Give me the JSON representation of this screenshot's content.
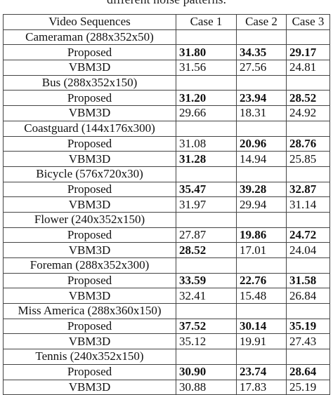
{
  "caption": "different noise patterns.",
  "table": {
    "headers": [
      "Video Sequences",
      "Case 1",
      "Case 2",
      "Case 3"
    ],
    "groups": [
      {
        "sequence": "Cameraman (288x352x50)",
        "rows": [
          {
            "method": "Proposed",
            "values": [
              "31.80",
              "34.35",
              "29.17"
            ],
            "bold": [
              true,
              true,
              true
            ]
          },
          {
            "method": "VBM3D",
            "values": [
              "31.56",
              "27.56",
              "24.81"
            ],
            "bold": [
              false,
              false,
              false
            ]
          }
        ]
      },
      {
        "sequence": "Bus (288x352x150)",
        "rows": [
          {
            "method": "Proposed",
            "values": [
              "31.20",
              "23.94",
              "28.52"
            ],
            "bold": [
              true,
              true,
              true
            ]
          },
          {
            "method": "VBM3D",
            "values": [
              "29.66",
              "18.31",
              "24.92"
            ],
            "bold": [
              false,
              false,
              false
            ]
          }
        ]
      },
      {
        "sequence": "Coastguard (144x176x300)",
        "rows": [
          {
            "method": "Proposed",
            "values": [
              "31.08",
              "20.96",
              "28.76"
            ],
            "bold": [
              false,
              true,
              true
            ]
          },
          {
            "method": "VBM3D",
            "values": [
              "31.28",
              "14.94",
              "25.85"
            ],
            "bold": [
              true,
              false,
              false
            ]
          }
        ]
      },
      {
        "sequence": "Bicycle (576x720x30)",
        "rows": [
          {
            "method": "Proposed",
            "values": [
              "35.47",
              "39.28",
              "32.87"
            ],
            "bold": [
              true,
              true,
              true
            ]
          },
          {
            "method": "VBM3D",
            "values": [
              "31.97",
              "29.94",
              "31.14"
            ],
            "bold": [
              false,
              false,
              false
            ]
          }
        ]
      },
      {
        "sequence": "Flower (240x352x150)",
        "rows": [
          {
            "method": "Proposed",
            "values": [
              "27.87",
              "19.86",
              "24.72"
            ],
            "bold": [
              false,
              true,
              true
            ]
          },
          {
            "method": "VBM3D",
            "values": [
              "28.52",
              "17.01",
              "24.04"
            ],
            "bold": [
              true,
              false,
              false
            ]
          }
        ]
      },
      {
        "sequence": "Foreman (288x352x300)",
        "rows": [
          {
            "method": "Proposed",
            "values": [
              "33.59",
              "22.76",
              "31.58"
            ],
            "bold": [
              true,
              true,
              true
            ]
          },
          {
            "method": "VBM3D",
            "values": [
              "32.41",
              "15.48",
              "26.84"
            ],
            "bold": [
              false,
              false,
              false
            ]
          }
        ]
      },
      {
        "sequence": "Miss America (288x360x150)",
        "rows": [
          {
            "method": "Proposed",
            "values": [
              "37.52",
              "30.14",
              "35.19"
            ],
            "bold": [
              true,
              true,
              true
            ]
          },
          {
            "method": "VBM3D",
            "values": [
              "35.12",
              "19.91",
              "27.43"
            ],
            "bold": [
              false,
              false,
              false
            ]
          }
        ]
      },
      {
        "sequence": "Tennis (240x352x150)",
        "rows": [
          {
            "method": "Proposed",
            "values": [
              "30.90",
              "23.74",
              "28.64"
            ],
            "bold": [
              true,
              true,
              true
            ]
          },
          {
            "method": "VBM3D",
            "values": [
              "30.88",
              "17.83",
              "25.19"
            ],
            "bold": [
              false,
              false,
              false
            ]
          }
        ]
      }
    ]
  }
}
